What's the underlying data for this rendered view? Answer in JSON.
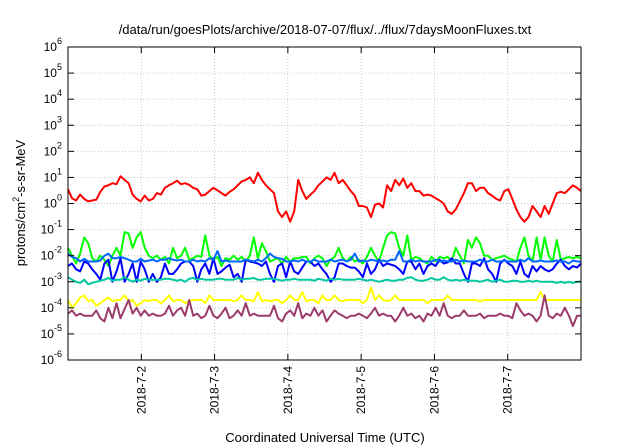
{
  "chart_data": {
    "type": "line",
    "title": "/data/run/goesPlots/archive/2018-07-07/flux/../flux/7daysMoonFluxes.txt",
    "xlabel": "Coordinated Universal Time (UTC)",
    "ylabel": {
      "pre": "protons/cm",
      "sup": "2",
      "post": "-s-sr-MeV"
    },
    "y_scale": "log",
    "ylim_exp": [
      -6,
      6
    ],
    "y_ticks": [
      {
        "base": "10",
        "exp": "6"
      },
      {
        "base": "10",
        "exp": "5"
      },
      {
        "base": "10",
        "exp": "4"
      },
      {
        "base": "10",
        "exp": "3"
      },
      {
        "base": "10",
        "exp": "2"
      },
      {
        "base": "10",
        "exp": "1"
      },
      {
        "base": "10",
        "exp": "0"
      },
      {
        "base": "10",
        "exp": "-1"
      },
      {
        "base": "10",
        "exp": "-2"
      },
      {
        "base": "10",
        "exp": "-3"
      },
      {
        "base": "10",
        "exp": "-4"
      },
      {
        "base": "10",
        "exp": "-5"
      },
      {
        "base": "10",
        "exp": "-6"
      }
    ],
    "x_range_days": [
      1.0,
      8.0
    ],
    "x_ticks": [
      {
        "label": "2018-7-2",
        "day": 2
      },
      {
        "label": "2018-7-3",
        "day": 3
      },
      {
        "label": "2018-7-4",
        "day": 4
      },
      {
        "label": "2018-7-5",
        "day": 5
      },
      {
        "label": "2018-7-6",
        "day": 6
      },
      {
        "label": "2018-7-7",
        "day": 7
      }
    ],
    "grid": true,
    "series": [
      {
        "color": "#ff0000",
        "values": [
          3.5,
          1.6,
          1.3,
          2.2,
          1.5,
          1.2,
          1.3,
          1.4,
          2.8,
          4.5,
          5,
          6,
          5.5,
          11,
          8,
          6,
          2.2,
          1.5,
          1.2,
          2,
          1.3,
          1.5,
          2.5,
          2.2,
          4,
          5,
          6,
          7.5,
          5.5,
          6,
          5.2,
          4,
          3.5,
          2,
          2.2,
          3,
          4,
          3.2,
          2.5,
          2,
          2.8,
          3.5,
          5,
          7,
          8,
          10,
          6,
          15,
          8,
          5,
          3.5,
          2.5,
          0.5,
          0.3,
          0.5,
          0.2,
          0.5,
          8,
          3,
          1.5,
          2.2,
          3,
          5,
          7,
          10,
          8,
          15,
          6,
          8,
          5,
          3,
          2,
          0.8,
          0.8,
          0.7,
          0.3,
          0.9,
          1,
          0.7,
          5,
          3,
          8,
          5,
          9,
          4,
          6,
          3,
          3,
          2,
          2.2,
          2,
          1.6,
          1.3,
          1,
          0.5,
          0.4,
          0.6,
          1.2,
          2.5,
          6,
          6,
          3,
          4,
          4,
          2.5,
          2,
          1.5,
          1.3,
          3,
          3.5,
          1.5,
          0.6,
          0.3,
          0.2,
          0.3,
          0.8,
          0.5,
          0.3,
          0.8,
          0.4,
          1,
          2.5,
          2.8,
          2.5,
          3.5,
          5,
          4,
          3
        ]
      },
      {
        "color": "#00ff00",
        "values": [
          0.02,
          0.01,
          0.005,
          0.012,
          0.05,
          0.03,
          0.008,
          0.006,
          0.01,
          0.007,
          0.004,
          0.01,
          0.02,
          0.01,
          0.08,
          0.07,
          0.02,
          0.05,
          0.08,
          0.02,
          0.01,
          0.008,
          0.01,
          0.007,
          0.009,
          0.005,
          0.02,
          0.008,
          0.01,
          0.02,
          0.007,
          0.008,
          0.01,
          0.009,
          0.06,
          0.01,
          0.007,
          0.009,
          0.004,
          0.008,
          0.007,
          0.01,
          0.007,
          0.009,
          0.006,
          0.01,
          0.05,
          0.008,
          0.03,
          0.015,
          0.006,
          0.007,
          0.008,
          0.005,
          0.009,
          0.006,
          0.008,
          0.008,
          0.009,
          0.009,
          0.005,
          0.008,
          0.01,
          0.008,
          0.004,
          0.007,
          0.009,
          0.02,
          0.008,
          0.006,
          0.009,
          0.006,
          0.007,
          0.005,
          0.009,
          0.02,
          0.01,
          0.006,
          0.02,
          0.06,
          0.08,
          0.07,
          0.02,
          0.01,
          0.06,
          0.007,
          0.009,
          0.008,
          0.006,
          0.005,
          0.009,
          0.006,
          0.009,
          0.008,
          0.009,
          0.006,
          0.02,
          0.01,
          0.005,
          0.04,
          0.02,
          0.05,
          0.03,
          0.01,
          0.01,
          0.007,
          0.008,
          0.009,
          0.01,
          0.008,
          0.007,
          0.006,
          0.02,
          0.05,
          0.01,
          0.006,
          0.05,
          0.007,
          0.05,
          0.01,
          0.006,
          0.04,
          0.007,
          0.008,
          0.009,
          0.008,
          0.009,
          0.008
        ]
      },
      {
        "color": "#0000ff",
        "values": [
          0.004,
          0.005,
          0.003,
          0.0025,
          0.006,
          0.005,
          0.003,
          0.002,
          0.0012,
          0.005,
          0.007,
          0.001,
          0.0025,
          0.008,
          0.001,
          0.002,
          0.005,
          0.001,
          0.006,
          0.003,
          0.001,
          0.002,
          0.001,
          0.0015,
          0.005,
          0.002,
          0.002,
          0.003,
          0.005,
          0.006,
          0.006,
          0.004,
          0.001,
          0.003,
          0.005,
          0.002,
          0.008,
          0.002,
          0.0025,
          0.0035,
          0.0045,
          0.0015,
          0.002,
          0.001,
          0.007,
          0.006,
          0.0055,
          0.005,
          0.004,
          0.006,
          0.002,
          0.001,
          0.004,
          0.005,
          0.0015,
          0.006,
          0.0025,
          0.002,
          0.0035,
          0.006,
          0.006,
          0.004,
          0.005,
          0.003,
          0.002,
          0.001,
          0.0015,
          0.005,
          0.005,
          0.004,
          0.0035,
          0.0035,
          0.0025,
          0.0015,
          0.005,
          0.002,
          0.003,
          0.007,
          0.004,
          0.005,
          0.0045,
          0.004,
          0.003,
          0.002,
          0.006,
          0.006,
          0.003,
          0.005,
          0.002,
          0.004,
          0.005,
          0.004,
          0.007,
          0.005,
          0.0055,
          0.008,
          0.005,
          0.005,
          0.002,
          0.001,
          0.005,
          0.005,
          0.004,
          0.008,
          0.003,
          0.002,
          0.001,
          0.005,
          0.007,
          0.005,
          0.004,
          0.002,
          0.006,
          0.002,
          0.0015,
          0.004,
          0.0025,
          0.004,
          0.003,
          0.0025,
          0.003,
          0.005,
          0.007,
          0.004,
          0.003,
          0.004,
          0.0035,
          0.005
        ]
      },
      {
        "color": "#0066ff",
        "values": [
          0.012,
          0.009,
          0.008,
          0.006,
          0.0075,
          0.006,
          0.006,
          0.006,
          0.0065,
          0.01,
          0.012,
          0.008,
          0.008,
          0.009,
          0.008,
          0.007,
          0.006,
          0.006,
          0.0075,
          0.006,
          0.0065,
          0.007,
          0.006,
          0.007,
          0.007,
          0.008,
          0.007,
          0.0065,
          0.007,
          0.006,
          0.006,
          0.007,
          0.006,
          0.0065,
          0.006,
          0.008,
          0.007,
          0.015,
          0.006,
          0.0065,
          0.006,
          0.006,
          0.006,
          0.006,
          0.007,
          0.0065,
          0.006,
          0.007,
          0.006,
          0.008,
          0.012,
          0.009,
          0.008,
          0.0075,
          0.006,
          0.006,
          0.0065,
          0.006,
          0.007,
          0.006,
          0.006,
          0.007,
          0.006,
          0.006,
          0.006,
          0.007,
          0.006,
          0.0065,
          0.007,
          0.006,
          0.007,
          0.012,
          0.006,
          0.0065,
          0.006,
          0.007,
          0.0065,
          0.006,
          0.0065,
          0.006,
          0.007,
          0.007,
          0.015,
          0.006,
          0.006,
          0.007,
          0.006,
          0.0065,
          0.006,
          0.006,
          0.006,
          0.007,
          0.006,
          0.0065,
          0.006,
          0.006,
          0.007,
          0.006,
          0.0065,
          0.006,
          0.006,
          0.006,
          0.007,
          0.006,
          0.006,
          0.007,
          0.006,
          0.006,
          0.0065,
          0.006,
          0.006,
          0.006,
          0.007,
          0.006,
          0.008,
          0.006,
          0.006,
          0.0065,
          0.006,
          0.006,
          0.006,
          0.0065,
          0.006,
          0.006,
          0.005,
          0.0065,
          0.006,
          0.006
        ]
      },
      {
        "color": "#00c8a0",
        "values": [
          0.0015,
          0.0012,
          0.001,
          0.0009,
          0.0012,
          0.0008,
          0.0009,
          0.001,
          0.0011,
          0.0012,
          0.0014,
          0.0011,
          0.0012,
          0.0012,
          0.0015,
          0.0012,
          0.001,
          0.0012,
          0.0011,
          0.0013,
          0.0012,
          0.0012,
          0.0012,
          0.0012,
          0.0013,
          0.0013,
          0.0012,
          0.0011,
          0.0012,
          0.001,
          0.0013,
          0.0014,
          0.0012,
          0.0013,
          0.0012,
          0.0012,
          0.0012,
          0.0013,
          0.0013,
          0.0012,
          0.0012,
          0.0012,
          0.0014,
          0.0012,
          0.0013,
          0.0013,
          0.0014,
          0.0012,
          0.0012,
          0.0013,
          0.0013,
          0.0013,
          0.0012,
          0.0011,
          0.0012,
          0.0012,
          0.0013,
          0.0012,
          0.0012,
          0.0012,
          0.0012,
          0.0011,
          0.0013,
          0.0012,
          0.0011,
          0.0013,
          0.0012,
          0.0013,
          0.0012,
          0.0012,
          0.0012,
          0.0012,
          0.0013,
          0.0012,
          0.0011,
          0.0012,
          0.0011,
          0.001,
          0.0011,
          0.0012,
          0.0011,
          0.0011,
          0.0012,
          0.0012,
          0.0014,
          0.0015,
          0.0012,
          0.0011,
          0.0011,
          0.0012,
          0.0014,
          0.0012,
          0.0012,
          0.0015,
          0.0012,
          0.0011,
          0.0012,
          0.0011,
          0.0012,
          0.0011,
          0.0011,
          0.0011,
          0.001,
          0.0011,
          0.0012,
          0.001,
          0.0011,
          0.0012,
          0.001,
          0.001,
          0.0011,
          0.0011,
          0.001,
          0.001,
          0.0011,
          0.001,
          0.0011,
          0.001,
          0.001,
          0.001,
          0.001,
          0.0009,
          0.001,
          0.0009,
          0.001,
          0.0009,
          0.001,
          0.001
        ]
      },
      {
        "color": "#ffff00",
        "values": [
          0.0002,
          0.0001,
          0.00015,
          0.00025,
          0.0003,
          0.00018,
          0.0002,
          0.00012,
          0.00015,
          0.0002,
          0.00025,
          0.00018,
          0.0002,
          0.0002,
          0.0003,
          0.00018,
          0.0002,
          0.00012,
          0.00015,
          0.0002,
          0.00018,
          0.0002,
          0.0002,
          0.00015,
          0.0002,
          0.0003,
          0.00018,
          0.0002,
          0.0002,
          0.00015,
          0.00018,
          0.0002,
          0.0002,
          0.0002,
          0.00015,
          0.0003,
          0.0002,
          0.0002,
          0.0002,
          0.0002,
          0.0002,
          0.00018,
          0.0002,
          0.0003,
          0.0002,
          0.0002,
          0.00018,
          0.0004,
          0.00018,
          0.0002,
          0.00018,
          0.0002,
          0.0002,
          0.00015,
          0.0002,
          0.0003,
          0.0002,
          0.0002,
          0.0004,
          0.00018,
          0.0002,
          0.0002,
          0.00015,
          0.0003,
          0.0002,
          0.0002,
          0.0003,
          0.0002,
          0.00018,
          0.0002,
          0.0002,
          0.0002,
          0.0002,
          0.00015,
          0.0002,
          0.0006,
          0.0002,
          0.0003,
          0.0002,
          0.00018,
          0.0002,
          0.0003,
          0.0002,
          0.0002,
          0.0002,
          0.0002,
          0.0002,
          0.0002,
          0.0002,
          0.00015,
          0.0002,
          0.0002,
          0.0002,
          0.0002,
          0.0003,
          0.0002,
          0.0002,
          0.0002,
          0.0002,
          0.0002,
          0.0002,
          0.0002,
          0.00018,
          0.0002,
          0.0002,
          0.0002,
          0.0002,
          0.0002,
          0.0002,
          0.0002,
          0.0002,
          0.0002,
          0.0002,
          0.0002,
          0.0002,
          0.0002,
          0.0002,
          0.0004,
          0.0002,
          0.0002,
          0.0002,
          0.0002,
          0.0002,
          0.0002,
          0.0002,
          0.0002,
          0.0002,
          0.0002
        ]
      },
      {
        "color": "#9b3b6b",
        "values": [
          6e-05,
          8e-05,
          5e-05,
          6e-05,
          5e-05,
          5e-05,
          5e-05,
          8e-05,
          4e-05,
          3e-05,
          0.0001,
          4e-05,
          0.00015,
          4e-05,
          9e-05,
          0.0002,
          6e-05,
          0.0001,
          5e-05,
          8e-05,
          5e-05,
          6e-05,
          5e-05,
          5e-05,
          6e-05,
          0.00012,
          5e-05,
          8e-05,
          0.0001,
          5e-05,
          0.0002,
          5e-05,
          6e-05,
          4e-05,
          5e-05,
          0.00012,
          5e-05,
          4e-05,
          6e-05,
          0.0001,
          4e-05,
          5e-05,
          8e-05,
          5e-05,
          0.00015,
          5e-05,
          6e-05,
          5e-05,
          5e-05,
          5e-05,
          5e-05,
          0.00012,
          4e-05,
          3e-05,
          6e-05,
          8e-05,
          5e-05,
          0.00015,
          4e-05,
          6e-05,
          5e-05,
          0.0001,
          5e-05,
          8e-05,
          3e-05,
          5e-05,
          8e-05,
          6e-05,
          5e-05,
          4e-05,
          5e-05,
          5e-05,
          6e-05,
          5e-05,
          4e-05,
          6e-05,
          0.0001,
          5e-05,
          6e-05,
          5e-05,
          5e-05,
          3e-05,
          5e-05,
          0.0001,
          5e-05,
          6e-05,
          4e-05,
          5e-05,
          3e-05,
          6e-05,
          5e-05,
          0.0001,
          5e-05,
          0.00015,
          5e-05,
          4e-05,
          5e-05,
          5e-05,
          8e-05,
          5e-05,
          5e-05,
          5e-05,
          6e-05,
          4e-05,
          5e-05,
          5e-05,
          5e-05,
          6e-05,
          5e-05,
          5e-05,
          4e-05,
          0.00015,
          8e-05,
          5e-05,
          6e-05,
          5e-05,
          3e-05,
          5e-05,
          0.0003,
          5e-05,
          4e-05,
          6e-05,
          5e-05,
          0.0001,
          5e-05,
          2e-05,
          5e-05,
          5e-05
        ]
      }
    ]
  }
}
